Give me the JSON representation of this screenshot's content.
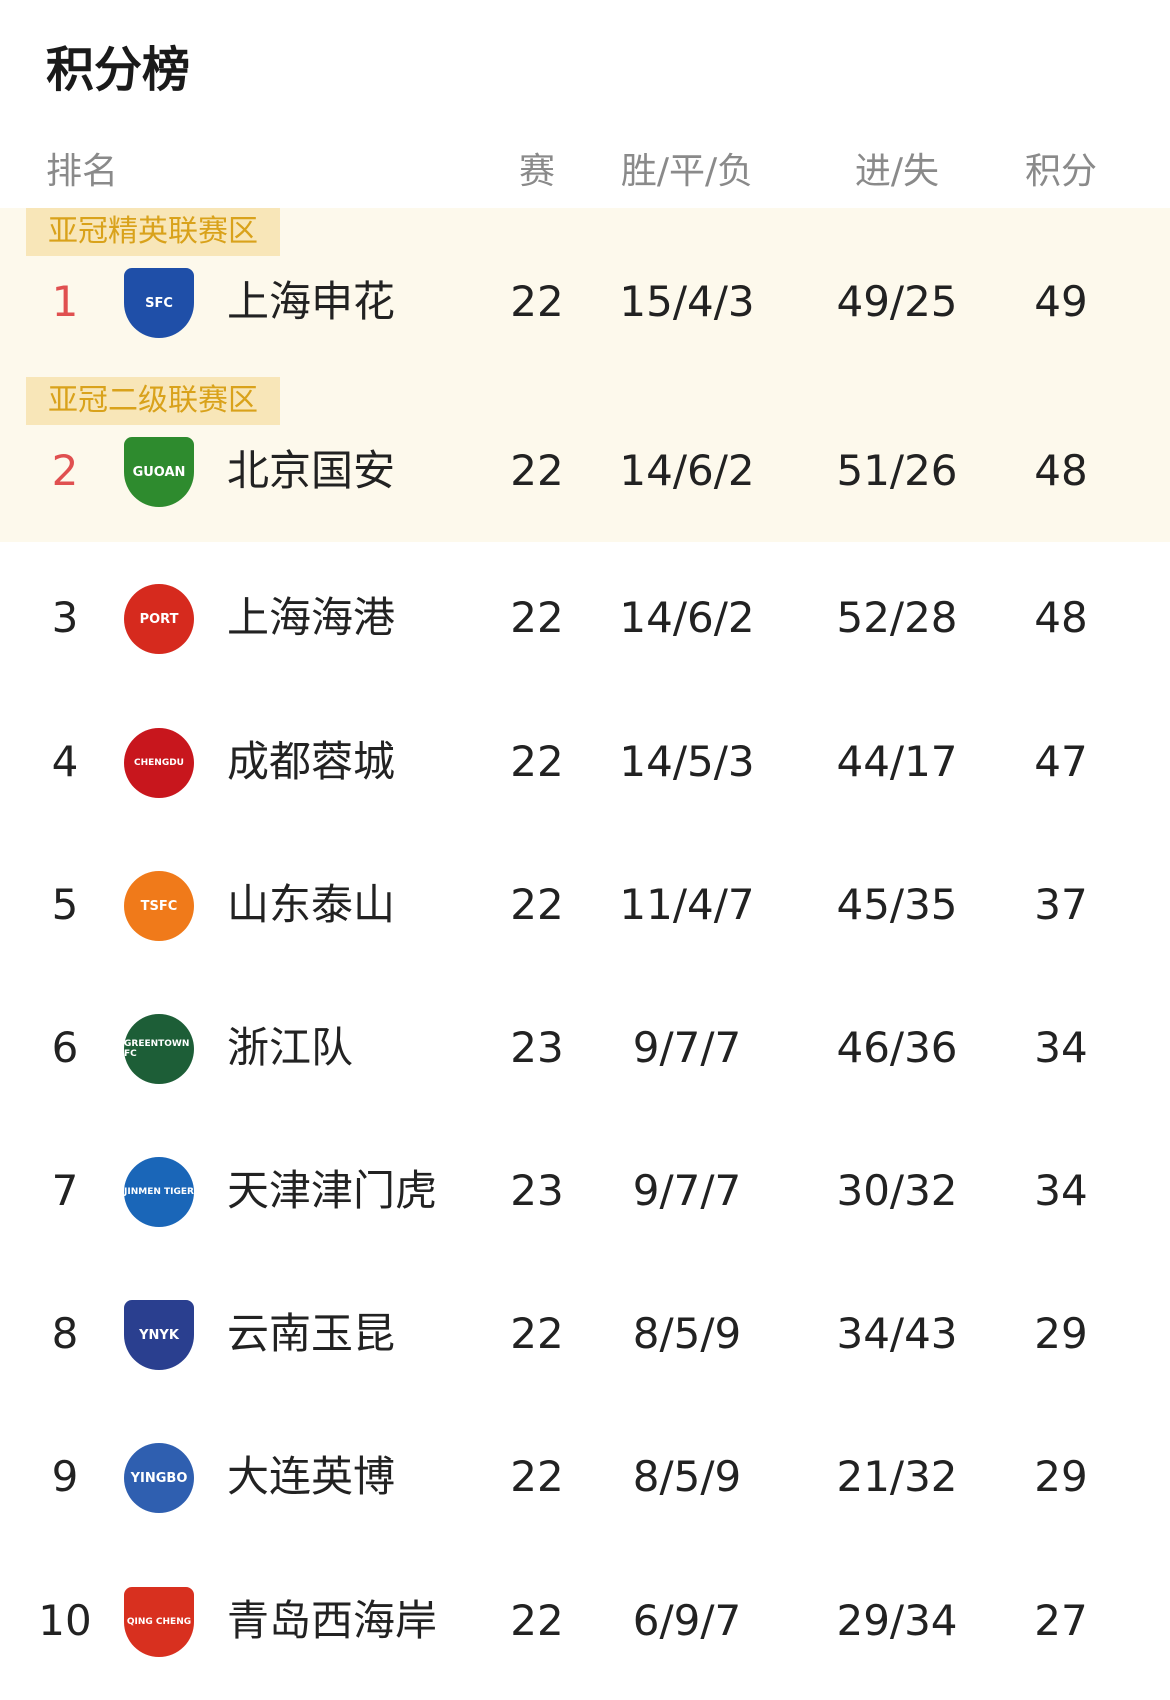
{
  "title": "积分榜",
  "headers": {
    "rank": "排名",
    "played": "赛",
    "wdl": "胜/平/负",
    "goals": "进/失",
    "points": "积分"
  },
  "zones": {
    "elite": "亚冠精英联赛区",
    "two": "亚冠二级联赛区"
  },
  "colors": {
    "zone_bg": "#fdf9ec",
    "zone_tag": "#f8e6b8",
    "zone_text": "#d9a21b",
    "top_rank": "#e05050"
  },
  "rows": [
    {
      "rank": "1",
      "team": "上海申花",
      "played": "22",
      "wdl": "15/4/3",
      "goals": "49/25",
      "points": "49",
      "logo": "SFC",
      "logo_color": "#1f4fa8"
    },
    {
      "rank": "2",
      "team": "北京国安",
      "played": "22",
      "wdl": "14/6/2",
      "goals": "51/26",
      "points": "48",
      "logo": "GUOAN",
      "logo_color": "#2e8b2e"
    },
    {
      "rank": "3",
      "team": "上海海港",
      "played": "22",
      "wdl": "14/6/2",
      "goals": "52/28",
      "points": "48",
      "logo": "PORT",
      "logo_color": "#d62a1e"
    },
    {
      "rank": "4",
      "team": "成都蓉城",
      "played": "22",
      "wdl": "14/5/3",
      "goals": "44/17",
      "points": "47",
      "logo": "CHENGDU",
      "logo_color": "#c8161d"
    },
    {
      "rank": "5",
      "team": "山东泰山",
      "played": "22",
      "wdl": "11/4/7",
      "goals": "45/35",
      "points": "37",
      "logo": "TSFC",
      "logo_color": "#f07a1a"
    },
    {
      "rank": "6",
      "team": "浙江队",
      "played": "23",
      "wdl": "9/7/7",
      "goals": "46/36",
      "points": "34",
      "logo": "GREENTOWN FC",
      "logo_color": "#1d5e37"
    },
    {
      "rank": "7",
      "team": "天津津门虎",
      "played": "23",
      "wdl": "9/7/7",
      "goals": "30/32",
      "points": "34",
      "logo": "JINMEN TIGER",
      "logo_color": "#1a66b8"
    },
    {
      "rank": "8",
      "team": "云南玉昆",
      "played": "22",
      "wdl": "8/5/9",
      "goals": "34/43",
      "points": "29",
      "logo": "YNYK",
      "logo_color": "#2a3f8f"
    },
    {
      "rank": "9",
      "team": "大连英博",
      "played": "22",
      "wdl": "8/5/9",
      "goals": "21/32",
      "points": "29",
      "logo": "YINGBO",
      "logo_color": "#2f5fb0"
    },
    {
      "rank": "10",
      "team": "青岛西海岸",
      "played": "22",
      "wdl": "6/9/7",
      "goals": "29/34",
      "points": "27",
      "logo": "QING CHENG",
      "logo_color": "#d8301f"
    }
  ]
}
